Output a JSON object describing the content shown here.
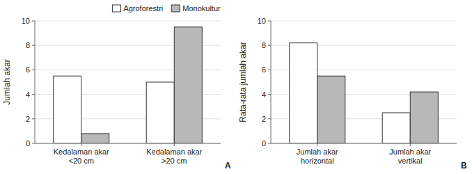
{
  "chart_data": [
    {
      "type": "bar",
      "ylabel": "Jumlah akar",
      "categories": [
        "Kedalaman akar\n<20 cm",
        "Kedalaman akar\n>20 cm"
      ],
      "series": [
        {
          "name": "Agroforestri",
          "color": "#ffffff",
          "values": [
            5.5,
            5.0
          ]
        },
        {
          "name": "Monokultur",
          "color": "#b8b8b8",
          "values": [
            0.8,
            9.5
          ]
        }
      ],
      "ylim": [
        0,
        10
      ],
      "yticks": [
        0,
        2,
        4,
        6,
        8,
        10
      ],
      "grid": true,
      "legend": "upper right",
      "annotations": [
        "A"
      ]
    },
    {
      "type": "bar",
      "ylabel": "Rata-rata jumlah akar",
      "categories": [
        "Jumlah akar\nhorizontal",
        "Jumlah akar\nvertikal"
      ],
      "series": [
        {
          "name": "Agroforestri",
          "color": "#ffffff",
          "values": [
            8.2,
            2.5
          ]
        },
        {
          "name": "Monokultur",
          "color": "#b8b8b8",
          "values": [
            5.5,
            4.2
          ]
        }
      ],
      "ylim": [
        0,
        10
      ],
      "yticks": [
        0,
        2,
        4,
        6,
        8,
        10
      ],
      "grid": true,
      "annotations": [
        "B"
      ]
    }
  ]
}
